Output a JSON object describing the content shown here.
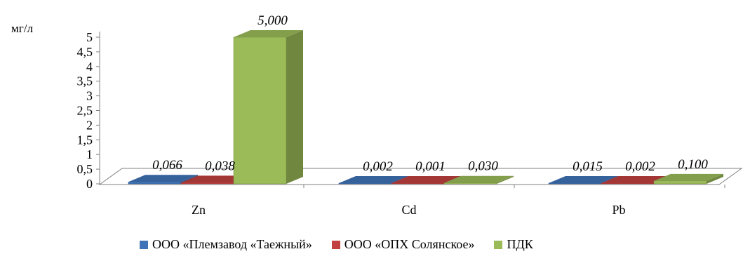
{
  "chart_data": {
    "type": "bar",
    "ylabel": "мг/л",
    "categories": [
      "Zn",
      "Cd",
      "Pb"
    ],
    "yticks": [
      "0",
      "0,5",
      "1",
      "1,5",
      "2",
      "2,5",
      "3",
      "3,5",
      "4",
      "4,5",
      "5"
    ],
    "ylim": [
      0,
      5
    ],
    "grid": false,
    "legend_position": "bottom",
    "series": [
      {
        "name": "ООО «Племзавод «Таежный»",
        "color": "#3f73b8",
        "values": [
          0.066,
          0.002,
          0.015
        ],
        "labels": [
          "0,066",
          "0,002",
          "0,015"
        ]
      },
      {
        "name": "ООО «ОПХ Солянское»",
        "color": "#c0413f",
        "values": [
          0.038,
          0.001,
          0.002
        ],
        "labels": [
          "0,038",
          "0,001",
          "0,002"
        ]
      },
      {
        "name": "ПДК",
        "color": "#9bbb59",
        "values": [
          5.0,
          0.03,
          0.1
        ],
        "labels": [
          "5,000",
          "0,030",
          "0,100"
        ]
      }
    ]
  }
}
